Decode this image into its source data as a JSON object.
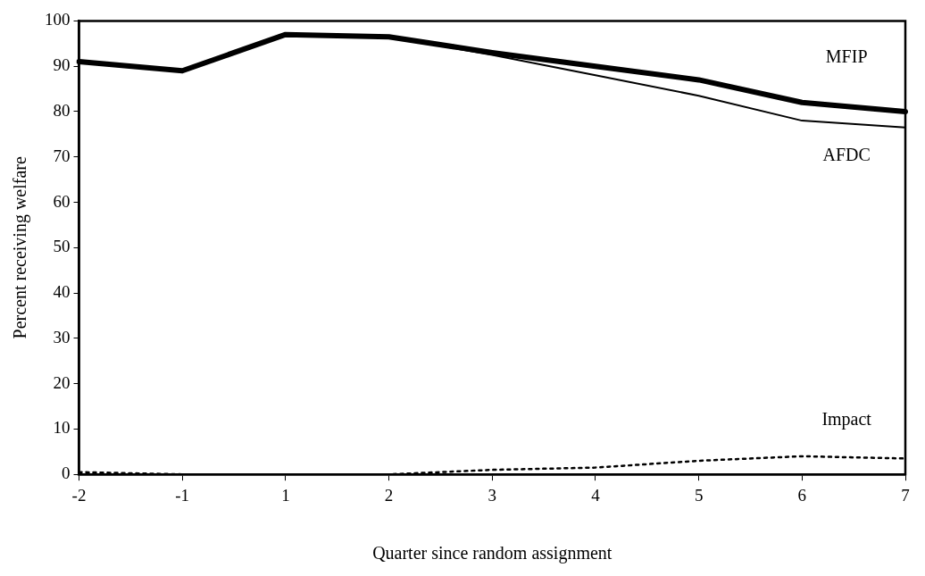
{
  "chart_data": {
    "type": "line",
    "xlabel": "Quarter since random assignment",
    "ylabel": "Percent receiving welfare",
    "categories": [
      "-2",
      "-1",
      "1",
      "2",
      "3",
      "4",
      "5",
      "6",
      "7"
    ],
    "series": [
      {
        "name": "MFIP",
        "color": "#000000",
        "line_style": "solid",
        "values": [
          91,
          89,
          97,
          96.5,
          93,
          90,
          87,
          82,
          80
        ]
      },
      {
        "name": "AFDC",
        "color": "#000000",
        "line_style": "solid",
        "values": [
          91,
          89,
          97,
          96.5,
          92.5,
          88,
          83.5,
          78,
          76.5
        ]
      },
      {
        "name": "Impact",
        "color": "#000000",
        "line_style": "dotted",
        "values": [
          0.5,
          0,
          0,
          0,
          1,
          1.5,
          3,
          4,
          3.5
        ]
      }
    ],
    "ylim": [
      0,
      100
    ],
    "yticks": [
      0,
      10,
      20,
      30,
      40,
      50,
      60,
      70,
      80,
      90,
      100
    ],
    "grid": false,
    "legend": false,
    "marker": "none"
  }
}
